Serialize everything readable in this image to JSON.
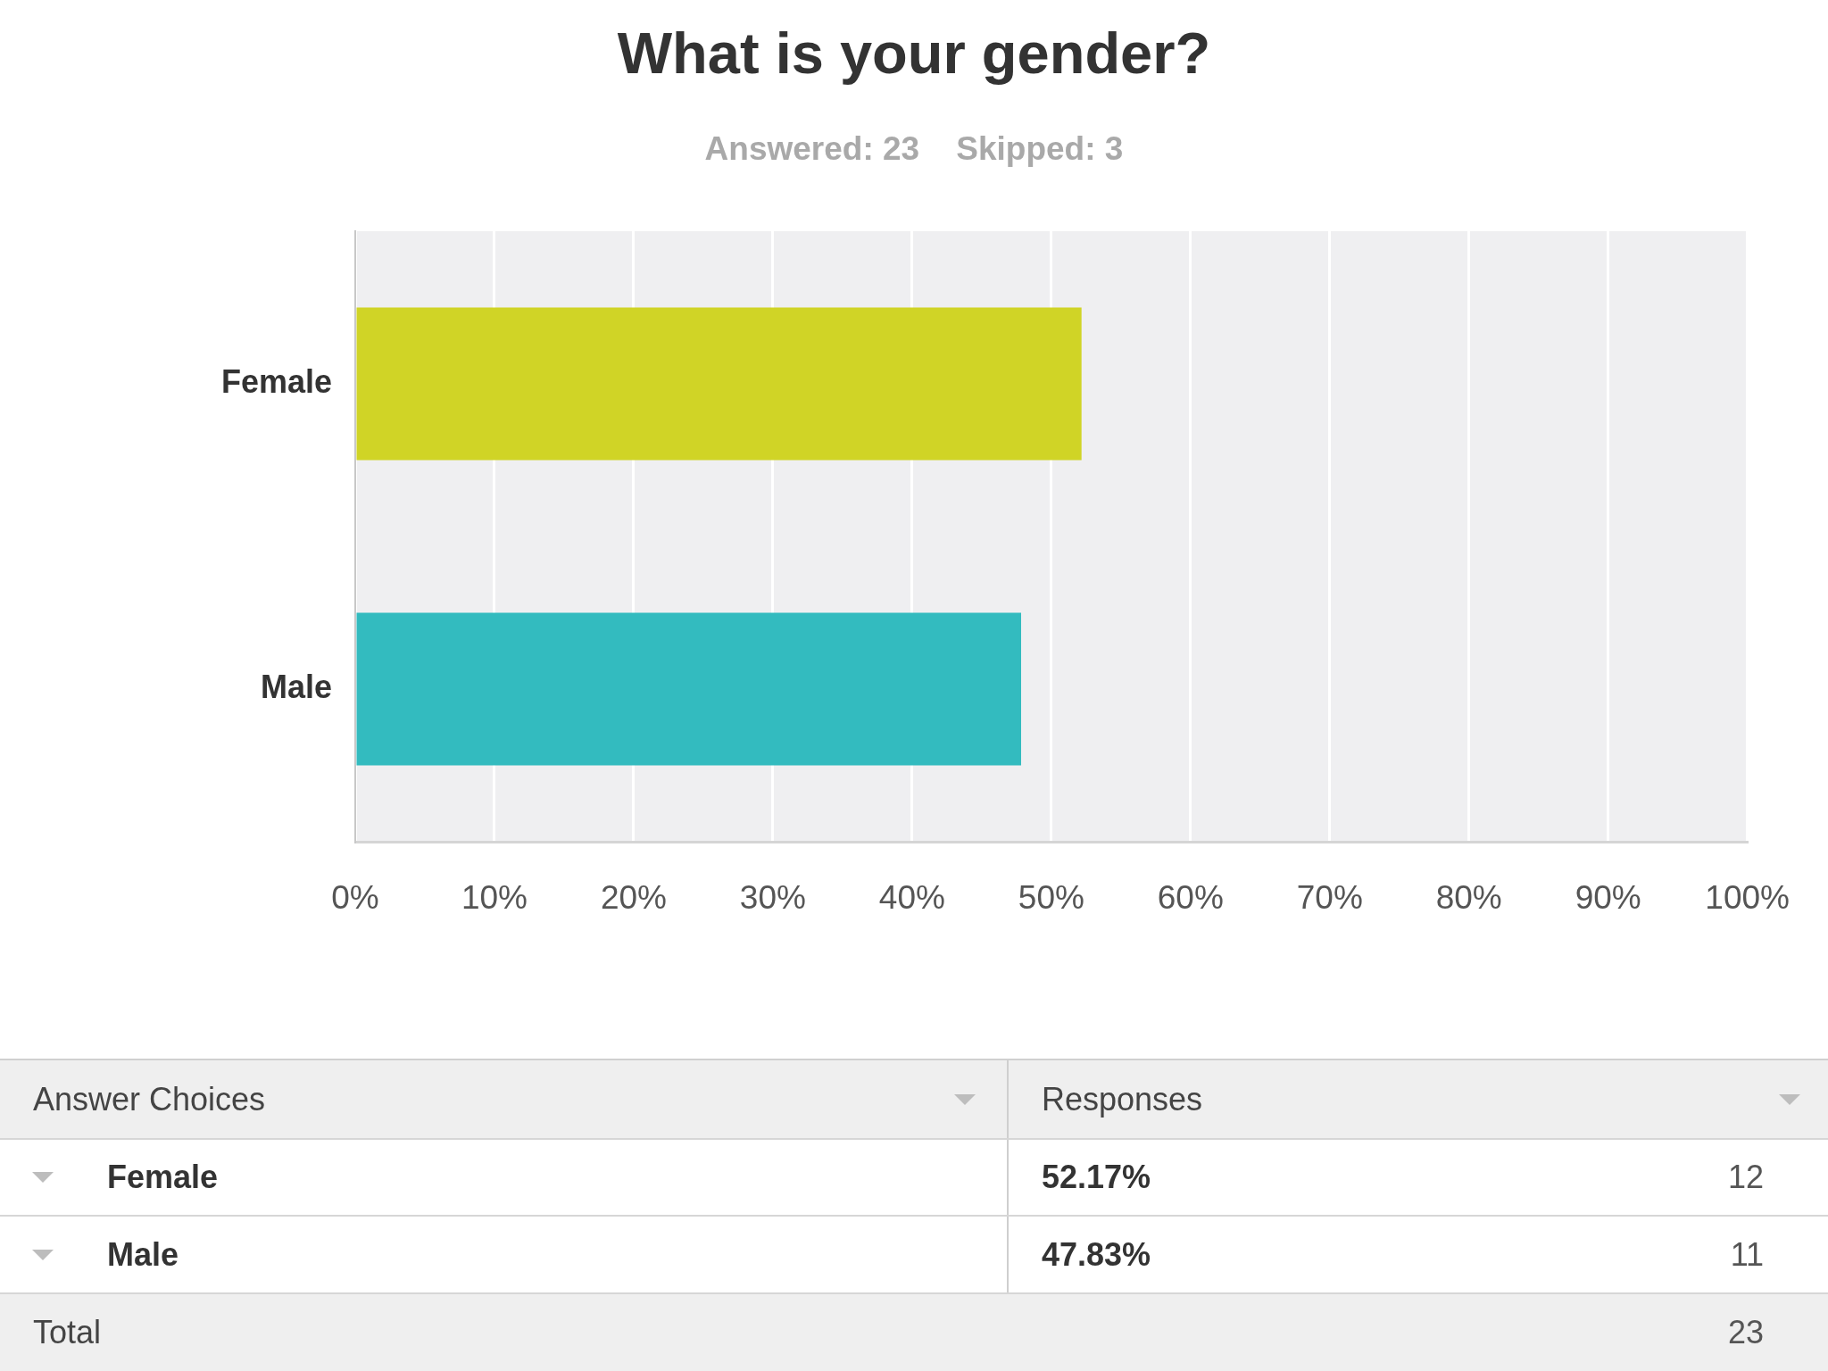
{
  "chart_data": {
    "type": "bar",
    "orientation": "horizontal",
    "title": "What is your gender?",
    "subtitle": "Answered: 23    Skipped: 3",
    "categories": [
      "Female",
      "Male"
    ],
    "values": [
      52.17,
      47.83
    ],
    "colors": [
      "#d0d426",
      "#33bbbf"
    ],
    "xlim": [
      0,
      100
    ],
    "xticks": [
      {
        "value": 0,
        "label": "0%"
      },
      {
        "value": 10,
        "label": "10%"
      },
      {
        "value": 20,
        "label": "20%"
      },
      {
        "value": 30,
        "label": "30%"
      },
      {
        "value": 40,
        "label": "40%"
      },
      {
        "value": 50,
        "label": "50%"
      },
      {
        "value": 60,
        "label": "60%"
      },
      {
        "value": 70,
        "label": "70%"
      },
      {
        "value": 80,
        "label": "80%"
      },
      {
        "value": 90,
        "label": "90%"
      },
      {
        "value": 100,
        "label": "100%"
      }
    ],
    "grid": "x",
    "annotations": [
      "Answer Choices",
      "Responses",
      "52.17%",
      "12",
      "47.83%",
      "11",
      "Total",
      "23"
    ]
  }
}
